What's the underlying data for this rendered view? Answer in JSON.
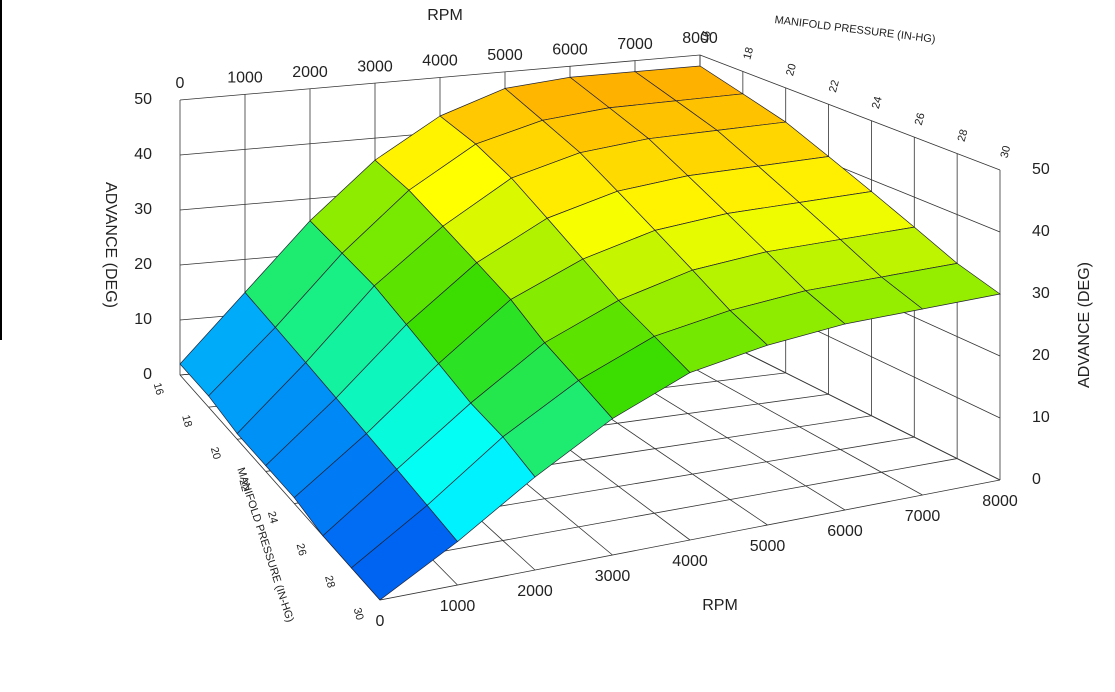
{
  "chart_data": {
    "type": "surface",
    "xlabel": "RPM",
    "ylabel": "MANIFOLD PRESSURE (IN-HG)",
    "zlabel": "ADVANCE (DEG)",
    "x": [
      0,
      1000,
      2000,
      3000,
      4000,
      5000,
      6000,
      7000,
      8000
    ],
    "y": [
      16,
      18,
      20,
      22,
      24,
      26,
      28,
      30
    ],
    "values": [
      [
        2,
        14,
        26,
        36,
        43,
        47,
        48,
        48,
        48
      ],
      [
        2,
        13,
        25,
        35,
        42,
        45,
        46,
        46,
        46
      ],
      [
        1,
        12,
        24,
        33,
        40,
        43,
        44,
        44,
        44
      ],
      [
        1,
        11,
        22,
        31,
        37,
        40,
        41,
        41,
        41
      ],
      [
        1,
        10,
        20,
        29,
        34,
        37,
        38,
        38,
        38
      ],
      [
        0,
        9,
        18,
        26,
        31,
        34,
        35,
        35,
        35
      ],
      [
        0,
        8,
        17,
        24,
        29,
        31,
        32,
        32,
        32
      ],
      [
        0,
        7,
        15,
        22,
        27,
        29,
        30,
        30,
        30
      ]
    ],
    "colormap": [
      "#0022ee",
      "#00ffff",
      "#33dd00",
      "#ffff00",
      "#ff9900"
    ],
    "xlim": [
      0,
      8000
    ],
    "xticks": [
      0,
      1000,
      2000,
      3000,
      4000,
      5000,
      6000,
      7000,
      8000
    ],
    "ylim": [
      16,
      30
    ],
    "yticks": [
      16,
      18,
      20,
      22,
      24,
      26,
      28,
      30
    ],
    "zlim": [
      0,
      50
    ],
    "zticks": [
      0,
      10,
      20,
      30,
      40,
      50
    ],
    "grid": true
  }
}
